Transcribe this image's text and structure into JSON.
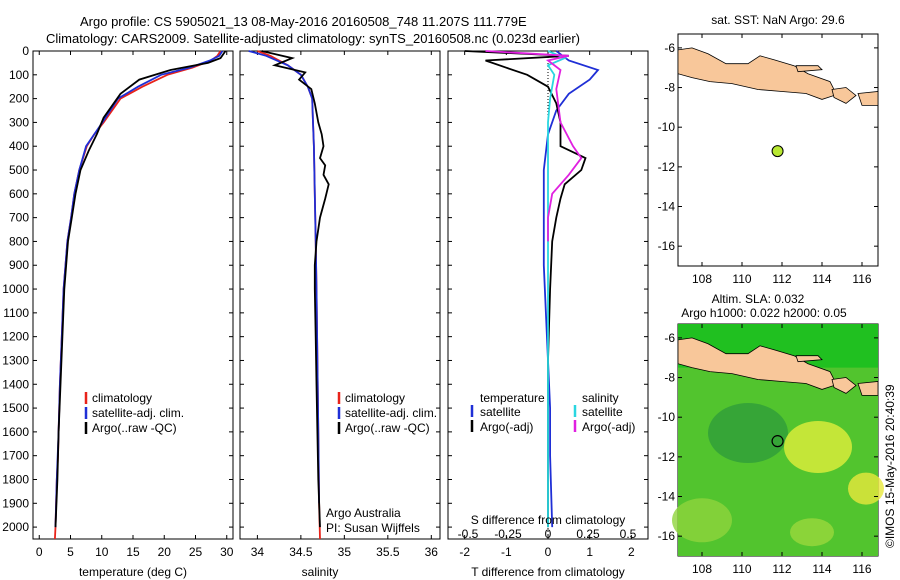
{
  "header": {
    "title_line1": "Argo profile: CS 5905021_13 08-May-2016 20160508_748 11.207S 111.779E",
    "title_line2": "Climatology: CARS2009. Satellite-adjusted climatology: synTS_20160508.nc (0.023d earlier)"
  },
  "credit": "©IMOS 15-May-2016 20:40:39",
  "colors": {
    "climatology": "#e8231a",
    "satellite": "#1f2fd6",
    "argo": "#000000",
    "salinity_satellite": "#2ad6e0",
    "salinity_argo_adj": "#e020e0",
    "land": "#f8c79a",
    "sla_field": "#4ec02a",
    "argo_marker": "#b8e832"
  },
  "chart_data": [
    {
      "type": "line",
      "id": "temperature-profile",
      "xlabel": "temperature (deg C)",
      "ylim": [
        2050,
        0
      ],
      "xlim": [
        -1,
        31
      ],
      "xticks": [
        0,
        5,
        10,
        15,
        20,
        25,
        30
      ],
      "yticks": [
        0,
        100,
        200,
        300,
        400,
        500,
        600,
        700,
        800,
        900,
        1000,
        1100,
        1200,
        1300,
        1400,
        1500,
        1600,
        1700,
        1800,
        1900,
        2000
      ],
      "legend": "middle-left",
      "series": [
        {
          "name": "climatology",
          "color": "#e8231a",
          "x": [
            29.0,
            28.5,
            27.5,
            24.5,
            20.5,
            16.5,
            13.0,
            10.3,
            8.8,
            7.6,
            6.4,
            5.6,
            5.1,
            4.5,
            3.9,
            3.6,
            3.3,
            3.1,
            3.0,
            2.8,
            2.7,
            2.6,
            2.5
          ],
          "y": [
            0,
            20,
            40,
            70,
            100,
            150,
            200,
            300,
            350,
            400,
            500,
            600,
            700,
            800,
            1000,
            1200,
            1400,
            1600,
            1700,
            1800,
            1900,
            2000,
            2050
          ]
        },
        {
          "name": "satellite-adj. clim.",
          "color": "#1f2fd6",
          "x": [
            29.3,
            28.8,
            27.3,
            24.0,
            19.5,
            15.8,
            12.6,
            10.1,
            8.8,
            7.5,
            6.4,
            5.6,
            5.1,
            4.5,
            3.9,
            3.6,
            3.3,
            3.1,
            2.8,
            2.6
          ],
          "y": [
            0,
            20,
            40,
            70,
            100,
            150,
            200,
            300,
            350,
            400,
            500,
            600,
            700,
            800,
            1000,
            1200,
            1400,
            1600,
            1800,
            2000
          ]
        },
        {
          "name": "Argo(..raw -QC)",
          "color": "#000000",
          "x": [
            29.8,
            29.0,
            27.0,
            21.0,
            16.0,
            13.0,
            10.3,
            9.2,
            7.9,
            6.6,
            5.8,
            5.2,
            4.6,
            4.0,
            3.7,
            3.4,
            3.1,
            2.9,
            2.6
          ],
          "y": [
            0,
            30,
            50,
            80,
            120,
            180,
            280,
            350,
            420,
            500,
            600,
            700,
            800,
            1000,
            1200,
            1400,
            1600,
            1800,
            2000
          ]
        }
      ]
    },
    {
      "type": "line",
      "id": "salinity-profile",
      "xlabel": "salinity",
      "ylim": [
        2050,
        0
      ],
      "xlim": [
        33.8,
        36.1
      ],
      "xticks": [
        34,
        34.5,
        35,
        35.5,
        36
      ],
      "legend": "middle-right",
      "annotation": [
        "Argo Australia",
        "PI: Susan Wijffels"
      ],
      "series": [
        {
          "name": "climatology",
          "color": "#e8231a",
          "x": [
            34.0,
            34.15,
            34.35,
            34.5,
            34.58,
            34.63,
            34.64,
            34.65,
            34.66,
            34.67,
            34.68,
            34.69,
            34.7,
            34.71,
            34.72
          ],
          "y": [
            0,
            20,
            60,
            100,
            150,
            200,
            300,
            400,
            600,
            800,
            1000,
            1300,
            1600,
            1900,
            2050
          ]
        },
        {
          "name": "satellite-adj. clim.",
          "color": "#1f2fd6",
          "x": [
            33.9,
            34.1,
            34.35,
            34.5,
            34.58,
            34.63,
            34.64,
            34.65,
            34.66,
            34.67,
            34.68,
            34.69,
            34.7,
            34.71
          ],
          "y": [
            0,
            20,
            60,
            100,
            150,
            200,
            300,
            400,
            600,
            800,
            1000,
            1300,
            1600,
            1900
          ]
        },
        {
          "name": "Argo(..raw -QC)",
          "color": "#000000",
          "x": [
            34.05,
            34.4,
            34.2,
            34.55,
            34.48,
            34.62,
            34.66,
            34.7,
            34.74,
            34.76,
            34.72,
            34.78,
            34.76,
            34.82,
            34.78,
            34.72,
            34.68,
            34.66,
            34.66,
            34.67,
            34.68,
            34.69,
            34.7,
            34.72
          ],
          "y": [
            0,
            30,
            60,
            90,
            120,
            160,
            220,
            300,
            350,
            400,
            450,
            480,
            520,
            560,
            620,
            700,
            800,
            900,
            1000,
            1200,
            1400,
            1600,
            1800,
            2000
          ]
        }
      ]
    },
    {
      "type": "line",
      "id": "difference-profile",
      "xlabel": "T difference from climatology",
      "x2label": "S difference from climatology",
      "ylim": [
        2050,
        0
      ],
      "xlim": [
        -2.4,
        2.4
      ],
      "xticks": [
        -2,
        -1,
        0,
        1,
        2
      ],
      "x2ticks": [
        -0.5,
        -0.25,
        0,
        0.25,
        0.5
      ],
      "legend": "middle",
      "legend_headers": [
        "temperature",
        "salinity"
      ],
      "series": [
        {
          "name": "satellite",
          "group": "temperature",
          "color": "#1f2fd6",
          "x": [
            0.2,
            0.5,
            1.2,
            1.0,
            0.5,
            0.2,
            0.0,
            -0.1,
            -0.1,
            -0.1,
            -0.05,
            0.0,
            0.05,
            0.05,
            0.1
          ],
          "y": [
            0,
            40,
            80,
            120,
            180,
            250,
            350,
            500,
            700,
            900,
            1100,
            1300,
            1500,
            1700,
            2000
          ]
        },
        {
          "name": "Argo(-adj)",
          "group": "temperature",
          "color": "#000000",
          "x": [
            -2.0,
            0.5,
            -1.5,
            -1.0,
            -0.5,
            0.0,
            0.2,
            0.3,
            0.3,
            0.9,
            0.8,
            0.4,
            0.3,
            0.2,
            0.1,
            0.05,
            0.0,
            0.0,
            0.0
          ],
          "y": [
            0,
            20,
            40,
            70,
            100,
            150,
            220,
            300,
            400,
            450,
            500,
            560,
            620,
            700,
            800,
            1000,
            1300,
            1600,
            2000
          ]
        },
        {
          "name": "satellite",
          "group": "salinity",
          "color": "#2ad6e0",
          "x": [
            0.0,
            0.4,
            0.0,
            0.15,
            0.05,
            0.0,
            0.0,
            0.0,
            0.0,
            0.0,
            0.0
          ],
          "y": [
            0,
            30,
            60,
            100,
            200,
            300,
            500,
            800,
            1200,
            1600,
            2000
          ]
        },
        {
          "name": "Argo(-adj)",
          "group": "salinity",
          "color": "#e020e0",
          "x": [
            -1.5,
            0.5,
            0.0,
            0.3,
            0.2,
            0.3,
            0.6,
            0.8,
            0.5,
            0.1,
            0.0,
            0.0
          ],
          "y": [
            0,
            20,
            40,
            80,
            160,
            300,
            400,
            450,
            520,
            600,
            700,
            800
          ]
        }
      ]
    },
    {
      "type": "map",
      "id": "sst-map",
      "title": "sat. SST: NaN Argo: 29.6",
      "xlim": [
        106.8,
        116.8
      ],
      "ylim": [
        -17,
        -5.3
      ],
      "xticks": [
        108,
        110,
        112,
        114,
        116
      ],
      "yticks": [
        -6,
        -8,
        -10,
        -12,
        -14,
        -16
      ],
      "argo_position": [
        111.779,
        -11.207
      ]
    },
    {
      "type": "map",
      "id": "sla-map",
      "title_line1": "Altim. SLA: 0.032",
      "title_line2": "Argo h1000: 0.022 h2000: 0.05",
      "xlim": [
        106.8,
        116.8
      ],
      "ylim": [
        -17,
        -5.3
      ],
      "xticks": [
        108,
        110,
        112,
        114,
        116
      ],
      "yticks": [
        -6,
        -8,
        -10,
        -12,
        -14,
        -16
      ],
      "argo_position": [
        111.779,
        -11.207
      ]
    }
  ]
}
